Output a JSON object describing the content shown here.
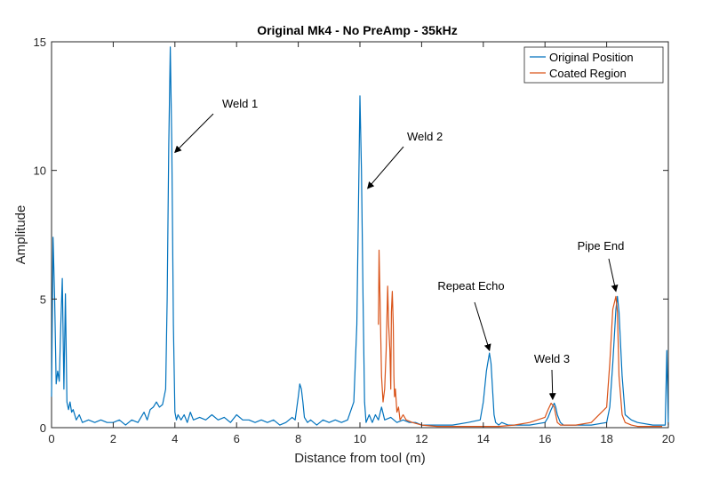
{
  "chart_data": {
    "type": "line",
    "title": "Original Mk4 - No PreAmp - 35kHz",
    "xlabel": "Distance from tool (m)",
    "ylabel": "Amplitude",
    "xlim": [
      0,
      20
    ],
    "ylim": [
      0,
      15
    ],
    "xticks": [
      0,
      2,
      4,
      6,
      8,
      10,
      12,
      14,
      16,
      18,
      20
    ],
    "yticks": [
      0,
      5,
      10,
      15
    ],
    "grid": false,
    "legend_position": "top-right",
    "series": [
      {
        "name": "Original Position",
        "color": "#0072BD",
        "x": [
          0.0,
          0.05,
          0.1,
          0.15,
          0.2,
          0.25,
          0.3,
          0.35,
          0.4,
          0.45,
          0.5,
          0.55,
          0.6,
          0.65,
          0.7,
          0.8,
          0.9,
          1.0,
          1.2,
          1.4,
          1.6,
          1.8,
          2.0,
          2.2,
          2.4,
          2.6,
          2.8,
          3.0,
          3.1,
          3.2,
          3.3,
          3.4,
          3.5,
          3.6,
          3.7,
          3.75,
          3.8,
          3.85,
          3.9,
          3.95,
          4.0,
          4.05,
          4.1,
          4.2,
          4.3,
          4.4,
          4.5,
          4.6,
          4.8,
          5.0,
          5.2,
          5.4,
          5.6,
          5.8,
          6.0,
          6.2,
          6.4,
          6.6,
          6.8,
          7.0,
          7.2,
          7.4,
          7.6,
          7.8,
          7.9,
          8.0,
          8.05,
          8.1,
          8.15,
          8.2,
          8.3,
          8.4,
          8.6,
          8.8,
          9.0,
          9.2,
          9.4,
          9.6,
          9.8,
          9.9,
          9.95,
          10.0,
          10.05,
          10.1,
          10.15,
          10.2,
          10.3,
          10.4,
          10.5,
          10.6,
          10.7,
          10.8,
          11.0,
          11.2,
          11.4,
          11.6,
          11.8,
          12.0,
          12.5,
          13.0,
          13.5,
          13.9,
          14.0,
          14.1,
          14.2,
          14.25,
          14.3,
          14.35,
          14.4,
          14.5,
          14.6,
          14.8,
          15.0,
          15.5,
          16.0,
          16.1,
          16.2,
          16.3,
          16.35,
          16.4,
          16.5,
          16.6,
          16.8,
          17.0,
          17.5,
          18.0,
          18.1,
          18.2,
          18.3,
          18.35,
          18.4,
          18.5,
          18.6,
          18.8,
          19.0,
          19.5,
          19.9,
          19.95,
          20.0
        ],
        "y": [
          1.2,
          7.4,
          5.0,
          1.7,
          2.2,
          1.8,
          4.0,
          5.8,
          1.5,
          5.2,
          1.0,
          0.7,
          1.0,
          0.6,
          0.7,
          0.3,
          0.5,
          0.2,
          0.3,
          0.2,
          0.3,
          0.2,
          0.2,
          0.3,
          0.1,
          0.3,
          0.2,
          0.6,
          0.3,
          0.7,
          0.8,
          1.0,
          0.8,
          0.9,
          1.5,
          5.0,
          11.0,
          14.8,
          11.0,
          4.0,
          0.6,
          0.3,
          0.5,
          0.3,
          0.5,
          0.2,
          0.6,
          0.3,
          0.4,
          0.3,
          0.5,
          0.3,
          0.4,
          0.2,
          0.5,
          0.3,
          0.3,
          0.2,
          0.3,
          0.2,
          0.3,
          0.1,
          0.2,
          0.4,
          0.3,
          1.2,
          1.7,
          1.5,
          1.0,
          0.4,
          0.2,
          0.3,
          0.1,
          0.3,
          0.2,
          0.3,
          0.2,
          0.3,
          1.0,
          4.0,
          8.5,
          12.9,
          10.0,
          5.0,
          1.0,
          0.2,
          0.5,
          0.2,
          0.5,
          0.3,
          0.8,
          0.3,
          0.4,
          0.2,
          0.3,
          0.2,
          0.2,
          0.1,
          0.1,
          0.1,
          0.2,
          0.3,
          1.0,
          2.2,
          2.9,
          2.5,
          1.5,
          0.5,
          0.2,
          0.1,
          0.2,
          0.1,
          0.1,
          0.1,
          0.2,
          0.4,
          0.7,
          0.95,
          0.8,
          0.5,
          0.2,
          0.1,
          0.1,
          0.1,
          0.1,
          0.2,
          0.8,
          2.5,
          4.6,
          5.1,
          4.5,
          2.0,
          0.5,
          0.3,
          0.2,
          0.1,
          0.1,
          3.0,
          0.1
        ]
      },
      {
        "name": "Coated Region",
        "color": "#D95319",
        "x": [
          10.6,
          10.62,
          10.65,
          10.7,
          10.75,
          10.8,
          10.85,
          10.9,
          10.93,
          10.97,
          11.0,
          11.02,
          11.05,
          11.08,
          11.1,
          11.12,
          11.15,
          11.2,
          11.25,
          11.3,
          11.4,
          11.5,
          11.7,
          12.0,
          12.5,
          13.0,
          13.5,
          14.0,
          14.5,
          15.0,
          15.5,
          16.0,
          16.1,
          16.2,
          16.3,
          16.35,
          16.4,
          16.5,
          16.6,
          16.8,
          17.0,
          17.5,
          18.0,
          18.1,
          18.2,
          18.3,
          18.35,
          18.4,
          18.5,
          18.6,
          18.8,
          19.0,
          19.5,
          19.8
        ],
        "y": [
          4.0,
          6.9,
          5.0,
          2.0,
          1.0,
          1.5,
          3.0,
          5.5,
          4.0,
          3.0,
          1.5,
          4.5,
          5.3,
          4.0,
          2.0,
          1.2,
          1.5,
          0.6,
          0.8,
          0.3,
          0.5,
          0.3,
          0.2,
          0.1,
          0.05,
          0.05,
          0.05,
          0.05,
          0.05,
          0.1,
          0.2,
          0.4,
          0.7,
          0.95,
          0.8,
          0.5,
          0.2,
          0.1,
          0.1,
          0.1,
          0.1,
          0.2,
          0.8,
          2.5,
          4.6,
          5.1,
          4.5,
          2.0,
          0.5,
          0.2,
          0.1,
          0.05,
          0.05,
          0.05
        ]
      }
    ],
    "annotations": [
      {
        "text": "Weld 1",
        "target": [
          4.0,
          10.7
        ]
      },
      {
        "text": "Weld 2",
        "target": [
          10.25,
          9.3
        ]
      },
      {
        "text": "Repeat Echo",
        "target": [
          14.2,
          3.0
        ]
      },
      {
        "text": "Weld 3",
        "target": [
          16.25,
          1.1
        ]
      },
      {
        "text": "Pipe End",
        "target": [
          18.3,
          5.3
        ]
      }
    ]
  }
}
